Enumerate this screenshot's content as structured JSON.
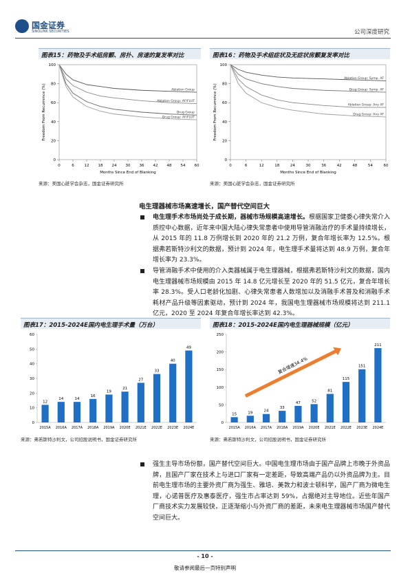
{
  "header": {
    "logo": "国金证券",
    "logo_en": "SINOLINK SECURITIES",
    "report_type": "公司深度研究"
  },
  "chart_data": [
    {
      "type": "line",
      "title": "图表15：药物及手术组房颤、房扑、房速的复发率对比",
      "x_label": "Months Since End of Blanking",
      "y_label": "Freedom From Recurrence (%)",
      "x": [
        0,
        3,
        6,
        12,
        18,
        24,
        36,
        48,
        60
      ],
      "xlim": [
        0,
        60
      ],
      "xticks": [
        0,
        6,
        12,
        18,
        24,
        30,
        36,
        42,
        48,
        54,
        60
      ],
      "ylim": [
        0,
        100
      ],
      "yticks": [
        0,
        20,
        40,
        60,
        80,
        100
      ],
      "series": [
        {
          "name": "Ablation Group",
          "color": "#555555",
          "values": [
            100,
            90,
            84,
            79,
            77,
            75,
            73,
            72,
            71
          ]
        },
        {
          "name": "Ablation Group: AF/FLUT",
          "color": "#888888",
          "values": [
            100,
            85,
            78,
            71,
            67,
            65,
            62,
            60,
            59
          ]
        },
        {
          "name": "Drug Group",
          "color": "#666666",
          "values": [
            100,
            80,
            70,
            61,
            56,
            53,
            50,
            48,
            47
          ]
        },
        {
          "name": "Drug Group: AF/FLUT",
          "color": "#999999",
          "values": [
            100,
            77,
            66,
            56,
            51,
            48,
            45,
            43,
            42
          ]
        }
      ],
      "source": "来源：美国心脏学会杂志，国金证券研究所"
    },
    {
      "type": "line",
      "title": "图表16：药物及手术组症状及无症状房颤复发率对比",
      "x_label": "Months Since End of Blanking",
      "y_label": "Freedom From Recurrence (%)",
      "x": [
        0,
        3,
        6,
        12,
        18,
        24,
        36,
        48,
        60
      ],
      "xlim": [
        0,
        60
      ],
      "xticks": [
        0,
        6,
        12,
        18,
        24,
        30,
        36,
        42,
        48,
        54,
        60
      ],
      "ylim": [
        0,
        100
      ],
      "yticks": [
        0,
        20,
        40,
        60,
        80,
        100
      ],
      "series": [
        {
          "name": "Ablation Group: Symp. AF",
          "color": "#555555",
          "values": [
            100,
            95,
            92,
            89,
            87,
            86,
            85,
            84,
            83
          ]
        },
        {
          "name": "Drug Group: Symp. AF",
          "color": "#777777",
          "values": [
            100,
            90,
            85,
            80,
            77,
            75,
            73,
            72,
            71
          ]
        },
        {
          "name": "Ablation Group: Any AF",
          "color": "#888888",
          "values": [
            100,
            85,
            77,
            68,
            63,
            60,
            57,
            55,
            55
          ]
        },
        {
          "name": "Drug Group: Any AF",
          "color": "#999999",
          "values": [
            100,
            80,
            70,
            60,
            55,
            52,
            48,
            46,
            45
          ]
        }
      ],
      "source": "来源：美国心脏学会杂志，国金证券研究所"
    },
    {
      "type": "bar",
      "title": "图表17：2015-2024E国内电生理手术量（万台）",
      "categories": [
        "2015A",
        "2016A",
        "2017A",
        "2018A",
        "2019A",
        "2020E",
        "2021E",
        "2022E",
        "2023E",
        "2024E"
      ],
      "values": [
        12,
        14,
        14,
        16,
        19,
        21,
        27,
        33,
        40,
        49
      ],
      "color": "#1f6fc5",
      "ylim": [
        0,
        60
      ],
      "yticks": [
        0,
        10,
        20,
        30,
        40,
        50,
        60
      ],
      "source": "来源：弗若斯特沙利文，公司招股说明书，国金证券研究所"
    },
    {
      "type": "bar",
      "title": "图表18：2015-2024E国内电生理器械规模（亿元）",
      "categories": [
        "2015A",
        "2016A",
        "2017A",
        "2018A",
        "2019A",
        "2020E",
        "2021E",
        "2022E",
        "2023E",
        "2024E"
      ],
      "values": [
        15,
        19,
        24,
        33,
        47,
        52,
        81,
        115,
        151,
        211
      ],
      "color": "#1f6fc5",
      "ylim": [
        0,
        250
      ],
      "yticks": [
        0,
        50,
        100,
        150,
        200,
        250
      ],
      "annotation": "复合增速34.4%",
      "annotation_color": "#ed7d31",
      "source": "来源：弗若斯特沙利文，公司招股说明书，国金证券研究所"
    }
  ],
  "section": {
    "heading": "电生理器械市场高速增长，国产替代空间巨大",
    "bullets": [
      {
        "lead": "电生理手术市场尚处于成长期，器械市场规模高速增长。",
        "text": "根据国家卫健委心律失常介入质控中心数据，近年来中国大陆心律失常患者中使用导管消融治疗的手术量持续增长，从 2015 年的 11.8 万例增长到 2020 年的 21.2 万例，复合年增长率为 12.5%。根据弗若斯特沙利文的数据，预计到 2024 年，电生理手术量将达到 48.9 万例，复合年增长率为 23.3%。"
      },
      {
        "text": "导管消融手术中使用的介入类器械属于电生理器械，根据弗若斯特沙利文的数据，国内电生理器械市场规模由 2015 年 14.8 亿元增长至 2020 年的 51.5 亿元，复合年增长率 28.3%。受人口老龄化加剧、心律失常患者人数增加以及消融手术普及和消融手术耗材产品升级等因素驱动，预计到 2024 年，我国电生理器械市场规模将达到 211.1 亿元，2020 至 2024 年复合年增长率达到 42.3%。"
      },
      {
        "text": "强生主导市场份额，国产替代空间巨大。中国电生理市场由于国产品牌上市晚于外资品牌，且国产厂家在技术上与进口厂家有一定差距，导致高端产品仍以外资品牌为主。目前电生理市场的主要外资厂商为强生、雅培、美敦力和波士顿科学，国产厂商为微电生理，心诺普医疗及惠泰医疗，强生市占率达到 59%，占据绝对主导地位。近些年国产厂商技术实力发展较快，正逐渐缩小与外资厂商的差距，未来电生理器械市场国产替代空间巨大。"
      }
    ]
  },
  "footer": {
    "page": "- 10 -",
    "disclaimer": "敬请参阅最后一页特别声明"
  }
}
